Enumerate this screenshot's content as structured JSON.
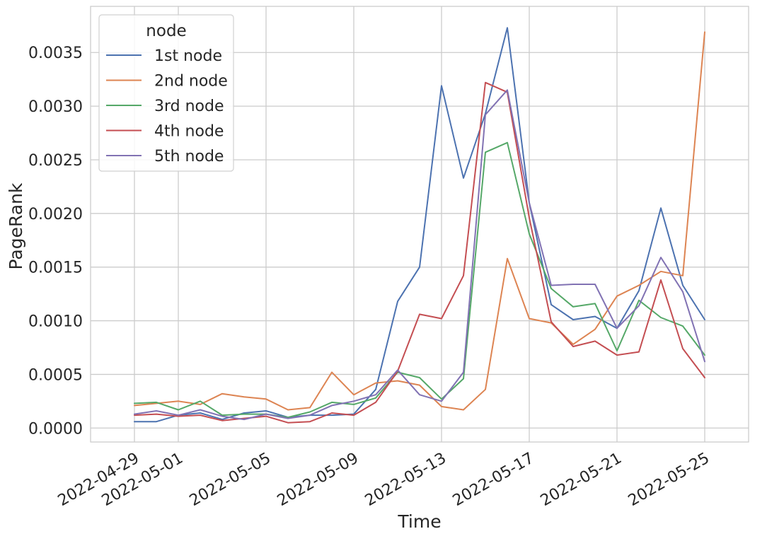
{
  "chart_data": {
    "type": "line",
    "xlabel": "Time",
    "ylabel": "PageRank",
    "legend": {
      "title": "node",
      "placement": "top-left"
    },
    "grid": true,
    "ylim": [
      -0.00013,
      0.00393
    ],
    "xlim": [
      "2022-04-27",
      "2022-05-27"
    ],
    "x_tick_labels": [
      "2022-04-29",
      "2022-05-01",
      "2022-05-05",
      "2022-05-09",
      "2022-05-13",
      "2022-05-17",
      "2022-05-21",
      "2022-05-25"
    ],
    "y_tick_labels": [
      "0.0000",
      "0.0005",
      "0.0010",
      "0.0015",
      "0.0020",
      "0.0025",
      "0.0030",
      "0.0035"
    ],
    "x": [
      "2022-04-29",
      "2022-04-30",
      "2022-05-01",
      "2022-05-02",
      "2022-05-03",
      "2022-05-04",
      "2022-05-05",
      "2022-05-06",
      "2022-05-07",
      "2022-05-08",
      "2022-05-09",
      "2022-05-10",
      "2022-05-11",
      "2022-05-12",
      "2022-05-13",
      "2022-05-14",
      "2022-05-15",
      "2022-05-16",
      "2022-05-17",
      "2022-05-18",
      "2022-05-19",
      "2022-05-20",
      "2022-05-21",
      "2022-05-22",
      "2022-05-23",
      "2022-05-24",
      "2022-05-25"
    ],
    "series": [
      {
        "name": "1st node",
        "color": "#4c72b0",
        "values": [
          6e-05,
          6e-05,
          0.00012,
          0.00014,
          8e-05,
          0.00014,
          0.00016,
          0.0001,
          0.00012,
          0.00012,
          0.00013,
          0.00036,
          0.00118,
          0.0015,
          0.00319,
          0.00233,
          0.00293,
          0.00373,
          0.0021,
          0.00115,
          0.00101,
          0.00104,
          0.00093,
          0.00128,
          0.00205,
          0.00133,
          0.00101
        ]
      },
      {
        "name": "2nd node",
        "color": "#dd8452",
        "values": [
          0.00021,
          0.00023,
          0.00025,
          0.00022,
          0.00032,
          0.00029,
          0.00027,
          0.00017,
          0.00019,
          0.00052,
          0.00031,
          0.00042,
          0.00044,
          0.0004,
          0.0002,
          0.00017,
          0.00036,
          0.00158,
          0.00102,
          0.00098,
          0.00078,
          0.00092,
          0.00123,
          0.00133,
          0.00146,
          0.00142,
          0.00369
        ]
      },
      {
        "name": "3rd node",
        "color": "#55a868",
        "values": [
          0.00023,
          0.00024,
          0.00017,
          0.00025,
          0.00012,
          0.00013,
          0.00013,
          0.0001,
          0.00015,
          0.00024,
          0.00022,
          0.00028,
          0.00052,
          0.00047,
          0.00027,
          0.00046,
          0.00257,
          0.00266,
          0.00181,
          0.0013,
          0.00113,
          0.00116,
          0.00072,
          0.00119,
          0.00103,
          0.00095,
          0.00068
        ]
      },
      {
        "name": "4th node",
        "color": "#c44e52",
        "values": [
          0.00012,
          0.00013,
          0.00011,
          0.00012,
          7e-05,
          9e-05,
          0.00011,
          5e-05,
          6e-05,
          0.00014,
          0.00012,
          0.00024,
          0.00053,
          0.00106,
          0.00102,
          0.00142,
          0.00322,
          0.00313,
          0.00196,
          0.00099,
          0.00076,
          0.00081,
          0.00068,
          0.00071,
          0.00138,
          0.00074,
          0.00047
        ]
      },
      {
        "name": "5th node",
        "color": "#8172b3",
        "values": [
          0.00013,
          0.00016,
          0.00012,
          0.00017,
          0.00011,
          8e-05,
          0.00013,
          9e-05,
          0.00012,
          0.00021,
          0.00025,
          0.00031,
          0.00054,
          0.00031,
          0.00025,
          0.00052,
          0.00292,
          0.00315,
          0.0021,
          0.00133,
          0.00134,
          0.00134,
          0.00093,
          0.00114,
          0.00159,
          0.00127,
          0.00062
        ]
      }
    ]
  }
}
